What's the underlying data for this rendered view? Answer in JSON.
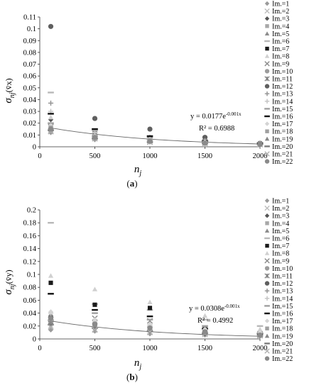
{
  "panel_a": {
    "label": "a",
    "ylabel_main": "σ",
    "ylabel_sub": "nj",
    "ylabel_paren": "(v̄x)",
    "xlabel": "n",
    "xlabel_sub": "j",
    "equation": "y = 0.0177e",
    "equation_exp": "-0.001x",
    "r2": "R² = 0.6988"
  },
  "panel_b": {
    "label": "b",
    "ylabel_main": "σ",
    "ylabel_sub": "nj",
    "ylabel_paren": "(v̄y)",
    "xlabel": "n",
    "xlabel_sub": "j",
    "equation": "y = 0.0308e",
    "equation_exp": "-0.001x",
    "r2": "R² = 0.4992"
  },
  "legend_items": [
    {
      "name": "Im.=1",
      "marker": "diamond",
      "color": "#9a9a9a"
    },
    {
      "name": "Im.=2",
      "marker": "x",
      "color": "#bdbdbd"
    },
    {
      "name": "Im.=3",
      "marker": "diamond",
      "color": "#555555"
    },
    {
      "name": "Im.=4",
      "marker": "square",
      "color": "#a8a8a8"
    },
    {
      "name": "Im.=5",
      "marker": "triangle",
      "color": "#8c8c8c"
    },
    {
      "name": "Im.=6",
      "marker": "dash",
      "color": "#b8b8b8"
    },
    {
      "name": "Im.=7",
      "marker": "square",
      "color": "#1a1a1a"
    },
    {
      "name": "Im.=8",
      "marker": "triangle",
      "color": "#d0d0d0"
    },
    {
      "name": "Im.=9",
      "marker": "x",
      "color": "#8a8a8a"
    },
    {
      "name": "Im.=10",
      "marker": "circle",
      "color": "#9c9c9c"
    },
    {
      "name": "Im.=11",
      "marker": "star",
      "color": "#7a7a7a"
    },
    {
      "name": "Im.=12",
      "marker": "circle",
      "color": "#5f5f5f"
    },
    {
      "name": "Im.=13",
      "marker": "plus",
      "color": "#8f8f8f"
    },
    {
      "name": "Im.=14",
      "marker": "plus",
      "color": "#c2c2c2"
    },
    {
      "name": "Im.=15",
      "marker": "dash",
      "color": "#9f9f9f"
    },
    {
      "name": "Im.=16",
      "marker": "dash",
      "color": "#111111"
    },
    {
      "name": "Im.=17",
      "marker": "diamond",
      "color": "#d4d4d4"
    },
    {
      "name": "Im.=18",
      "marker": "square",
      "color": "#a0a0a0"
    },
    {
      "name": "Im.=19",
      "marker": "triangle",
      "color": "#888888"
    },
    {
      "name": "Im.=20",
      "marker": "dash",
      "color": "#7c7c7c"
    },
    {
      "name": "Im.=21",
      "marker": "x",
      "color": "#b0b0b0"
    },
    {
      "name": "Im.=22",
      "marker": "circle",
      "color": "#8a8a8a"
    }
  ],
  "chart_data": [
    {
      "type": "scatter",
      "panel": "a",
      "x_ticks": [
        0,
        500,
        1000,
        1500,
        2000
      ],
      "y_ticks": [
        0,
        0.01,
        0.02,
        0.03,
        0.04,
        0.05,
        0.06,
        0.07,
        0.08,
        0.09,
        0.1,
        0.11
      ],
      "y_tick_labels": [
        "0",
        "0.01",
        "0.02",
        "0.03",
        "0.04",
        "0.05",
        "0.06",
        "0.07",
        "0.08",
        "0.09",
        "0.1",
        "0.11"
      ],
      "xlim": [
        0,
        2000
      ],
      "ylim": [
        0,
        0.11
      ],
      "trendline": {
        "a": 0.0177,
        "b": -0.001,
        "x_from": 100,
        "x_to": 2000
      },
      "series": [
        {
          "name": "Im.=1",
          "x": [
            100,
            500,
            1000,
            1500,
            2000
          ],
          "y": [
            0.012,
            0.006,
            0.004,
            0.003,
            0.002
          ]
        },
        {
          "name": "Im.=2",
          "x": [
            100,
            500,
            1000,
            1500,
            2000
          ],
          "y": [
            0.014,
            0.008,
            0.005,
            0.003,
            0.002
          ]
        },
        {
          "name": "Im.=3",
          "x": [
            100,
            500,
            1000,
            1500,
            2000
          ],
          "y": [
            0.023,
            0.01,
            0.006,
            0.004,
            0.002
          ]
        },
        {
          "name": "Im.=4",
          "x": [
            100,
            500,
            1000,
            1500,
            2000
          ],
          "y": [
            0.016,
            0.008,
            0.005,
            0.003,
            0.002
          ]
        },
        {
          "name": "Im.=5",
          "x": [
            100,
            500,
            1000,
            1500,
            2000
          ],
          "y": [
            0.019,
            0.009,
            0.006,
            0.004,
            0.002
          ]
        },
        {
          "name": "Im.=6",
          "x": [
            100,
            500,
            1000,
            1500,
            2000
          ],
          "y": [
            0.046,
            0.014,
            0.008,
            0.005,
            0.003
          ]
        },
        {
          "name": "Im.=7",
          "x": [
            100,
            500,
            1000,
            1500,
            2000
          ],
          "y": [
            0.015,
            0.008,
            0.005,
            0.003,
            0.002
          ]
        },
        {
          "name": "Im.=8",
          "x": [
            100,
            500,
            1000,
            1500,
            2000
          ],
          "y": [
            0.025,
            0.011,
            0.007,
            0.004,
            0.003
          ]
        },
        {
          "name": "Im.=9",
          "x": [
            100,
            500,
            1000,
            1500,
            2000
          ],
          "y": [
            0.013,
            0.007,
            0.004,
            0.003,
            0.002
          ]
        },
        {
          "name": "Im.=10",
          "x": [
            100,
            500,
            1000,
            1500,
            2000
          ],
          "y": [
            0.014,
            0.007,
            0.005,
            0.003,
            0.002
          ]
        },
        {
          "name": "Im.=11",
          "x": [
            100,
            500,
            1000,
            1500,
            2000
          ],
          "y": [
            0.017,
            0.01,
            0.006,
            0.004,
            0.002
          ]
        },
        {
          "name": "Im.=12",
          "x": [
            100,
            500,
            1000,
            1500,
            2000
          ],
          "y": [
            0.102,
            0.024,
            0.015,
            0.008,
            0.003
          ]
        },
        {
          "name": "Im.=13",
          "x": [
            100,
            500,
            1000,
            1500,
            2000
          ],
          "y": [
            0.037,
            0.013,
            0.008,
            0.005,
            0.003
          ]
        },
        {
          "name": "Im.=14",
          "x": [
            100,
            500,
            1000,
            1500,
            2000
          ],
          "y": [
            0.03,
            0.012,
            0.007,
            0.005,
            0.003
          ]
        },
        {
          "name": "Im.=15",
          "x": [
            100,
            500,
            1000,
            1500,
            2000
          ],
          "y": [
            0.02,
            0.009,
            0.006,
            0.004,
            0.002
          ]
        },
        {
          "name": "Im.=16",
          "x": [
            100,
            500,
            1000,
            1500,
            2000
          ],
          "y": [
            0.028,
            0.015,
            0.009,
            0.005,
            0.003
          ]
        },
        {
          "name": "Im.=17",
          "x": [
            100,
            500,
            1000,
            1500,
            2000
          ],
          "y": [
            0.018,
            0.009,
            0.006,
            0.004,
            0.002
          ]
        },
        {
          "name": "Im.=18",
          "x": [
            100,
            500,
            1000,
            1500,
            2000
          ],
          "y": [
            0.016,
            0.008,
            0.005,
            0.003,
            0.002
          ]
        },
        {
          "name": "Im.=19",
          "x": [
            100,
            500,
            1000,
            1500,
            2000
          ],
          "y": [
            0.015,
            0.008,
            0.005,
            0.003,
            0.002
          ]
        },
        {
          "name": "Im.=20",
          "x": [
            100,
            500,
            1000,
            1500,
            2000
          ],
          "y": [
            0.014,
            0.007,
            0.004,
            0.003,
            0.002
          ]
        },
        {
          "name": "Im.=21",
          "x": [
            100,
            500,
            1000,
            1500,
            2000
          ],
          "y": [
            0.013,
            0.007,
            0.004,
            0.003,
            0.002
          ]
        },
        {
          "name": "Im.=22",
          "x": [
            100,
            500,
            1000,
            1500,
            2000
          ],
          "y": [
            0.015,
            0.008,
            0.005,
            0.003,
            0.002
          ]
        }
      ]
    },
    {
      "type": "scatter",
      "panel": "b",
      "x_ticks": [
        0,
        500,
        1000,
        1500,
        2000
      ],
      "y_ticks": [
        0,
        0.02,
        0.04,
        0.06,
        0.08,
        0.1,
        0.12,
        0.14,
        0.16,
        0.18,
        0.2
      ],
      "y_tick_labels": [
        "0",
        "0.02",
        "0.04",
        "0.06",
        "0.08",
        "0.1",
        "0.12",
        "0.14",
        "0.16",
        "0.18",
        "0.2"
      ],
      "xlim": [
        0,
        2000
      ],
      "ylim": [
        0,
        0.2
      ],
      "trendline": {
        "a": 0.0308,
        "b": -0.001,
        "x_from": 100,
        "x_to": 2000
      },
      "series": [
        {
          "name": "Im.=1",
          "x": [
            100,
            500,
            1000,
            1500,
            2000
          ],
          "y": [
            0.014,
            0.012,
            0.008,
            0.006,
            0.004
          ]
        },
        {
          "name": "Im.=2",
          "x": [
            100,
            500,
            1000,
            1500,
            2000
          ],
          "y": [
            0.02,
            0.015,
            0.01,
            0.007,
            0.005
          ]
        },
        {
          "name": "Im.=3",
          "x": [
            100,
            500,
            1000,
            1500,
            2000
          ],
          "y": [
            0.024,
            0.016,
            0.012,
            0.008,
            0.006
          ]
        },
        {
          "name": "Im.=4",
          "x": [
            100,
            500,
            1000,
            1500,
            2000
          ],
          "y": [
            0.028,
            0.018,
            0.014,
            0.01,
            0.006
          ]
        },
        {
          "name": "Im.=5",
          "x": [
            100,
            500,
            1000,
            1500,
            2000
          ],
          "y": [
            0.03,
            0.022,
            0.016,
            0.012,
            0.007
          ]
        },
        {
          "name": "Im.=6",
          "x": [
            100,
            500,
            1000,
            1500,
            2000
          ],
          "y": [
            0.18,
            0.054,
            0.045,
            0.03,
            0.02
          ]
        },
        {
          "name": "Im.=7",
          "x": [
            100,
            500,
            1000,
            1500,
            2000
          ],
          "y": [
            0.087,
            0.053,
            0.048,
            0.017,
            0.008
          ]
        },
        {
          "name": "Im.=8",
          "x": [
            100,
            500,
            1000,
            1500,
            2000
          ],
          "y": [
            0.098,
            0.077,
            0.057,
            0.036,
            0.015
          ]
        },
        {
          "name": "Im.=9",
          "x": [
            100,
            500,
            1000,
            1500,
            2000
          ],
          "y": [
            0.026,
            0.032,
            0.028,
            0.015,
            0.008
          ]
        },
        {
          "name": "Im.=10",
          "x": [
            100,
            500,
            1000,
            1500,
            2000
          ],
          "y": [
            0.035,
            0.024,
            0.018,
            0.012,
            0.006
          ]
        },
        {
          "name": "Im.=11",
          "x": [
            100,
            500,
            1000,
            1500,
            2000
          ],
          "y": [
            0.03,
            0.02,
            0.015,
            0.01,
            0.006
          ]
        },
        {
          "name": "Im.=12",
          "x": [
            100,
            500,
            1000,
            1500,
            2000
          ],
          "y": [
            0.033,
            0.022,
            0.015,
            0.01,
            0.006
          ]
        },
        {
          "name": "Im.=13",
          "x": [
            100,
            500,
            1000,
            1500,
            2000
          ],
          "y": [
            0.032,
            0.03,
            0.022,
            0.015,
            0.008
          ]
        },
        {
          "name": "Im.=14",
          "x": [
            100,
            500,
            1000,
            1500,
            2000
          ],
          "y": [
            0.04,
            0.026,
            0.02,
            0.014,
            0.007
          ]
        },
        {
          "name": "Im.=15",
          "x": [
            100,
            500,
            1000,
            1500,
            2000
          ],
          "y": [
            0.029,
            0.04,
            0.03,
            0.02,
            0.009
          ]
        },
        {
          "name": "Im.=16",
          "x": [
            100,
            500,
            1000,
            1500,
            2000
          ],
          "y": [
            0.07,
            0.045,
            0.035,
            0.016,
            0.008
          ]
        },
        {
          "name": "Im.=17",
          "x": [
            100,
            500,
            1000,
            1500,
            2000
          ],
          "y": [
            0.042,
            0.03,
            0.022,
            0.015,
            0.01
          ]
        },
        {
          "name": "Im.=18",
          "x": [
            100,
            500,
            1000,
            1500,
            2000
          ],
          "y": [
            0.031,
            0.021,
            0.016,
            0.011,
            0.006
          ]
        },
        {
          "name": "Im.=19",
          "x": [
            100,
            500,
            1000,
            1500,
            2000
          ],
          "y": [
            0.025,
            0.019,
            0.014,
            0.01,
            0.006
          ]
        },
        {
          "name": "Im.=20",
          "x": [
            100,
            500,
            1000,
            1500,
            2000
          ],
          "y": [
            0.022,
            0.017,
            0.012,
            0.009,
            0.005
          ]
        },
        {
          "name": "Im.=21",
          "x": [
            100,
            500,
            1000,
            1500,
            2000
          ],
          "y": [
            0.018,
            0.014,
            0.011,
            0.008,
            0.005
          ]
        },
        {
          "name": "Im.=22",
          "x": [
            100,
            500,
            1000,
            1500,
            2000
          ],
          "y": [
            0.032,
            0.023,
            0.017,
            0.011,
            0.006
          ]
        }
      ]
    }
  ]
}
